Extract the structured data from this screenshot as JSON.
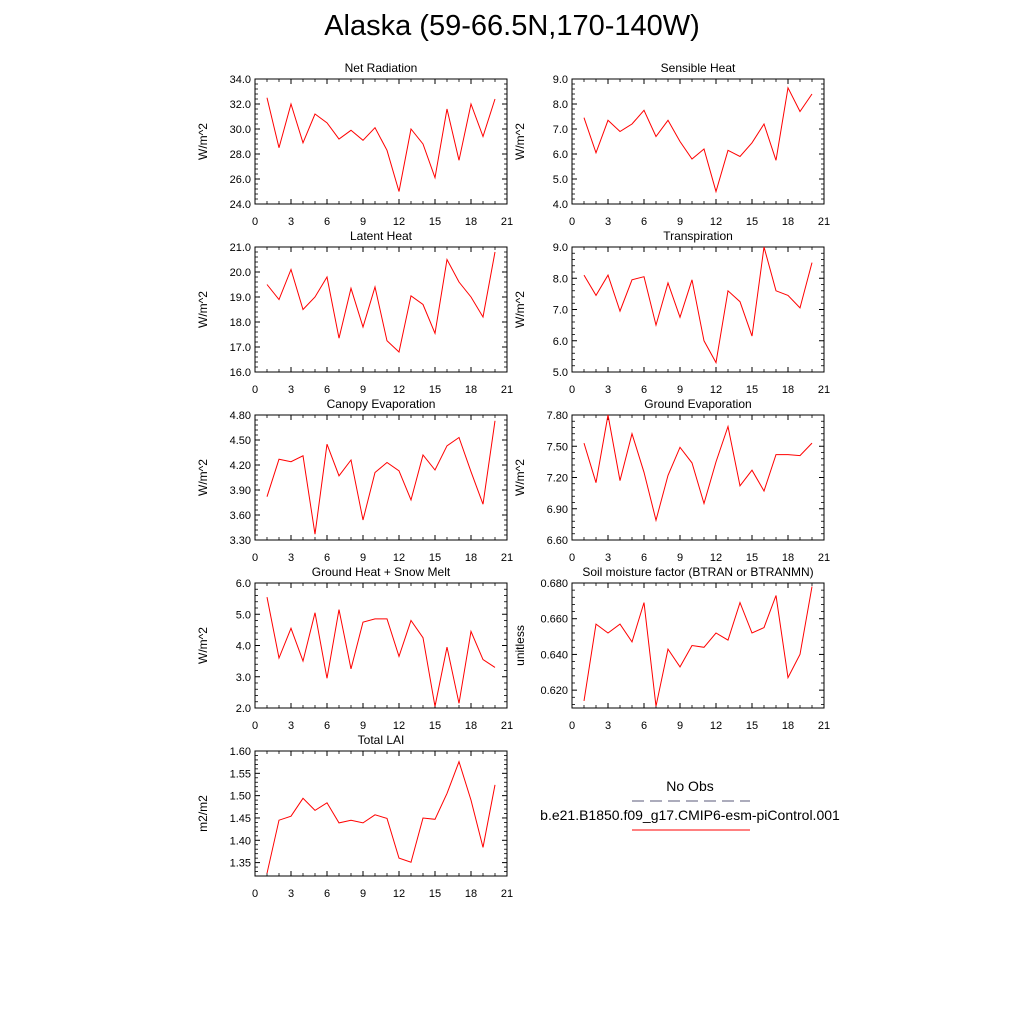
{
  "title": "Alaska (59-66.5N,170-140W)",
  "legend": {
    "obs_label": "No Obs",
    "obs_color": "#5a5a78",
    "model_label": "b.e21.B1850.f09_g17.CMIP6-esm-piControl.001",
    "model_color": "#ff0000"
  },
  "series_color": "#ff0000",
  "chart_data": [
    {
      "type": "line",
      "title": "Net Radiation",
      "ylabel": "W/m^2",
      "xlim": [
        0,
        21
      ],
      "xticks": [
        0,
        3,
        6,
        9,
        12,
        15,
        18,
        21
      ],
      "ylim": [
        24,
        34
      ],
      "yticks": [
        "24.0",
        "26.0",
        "28.0",
        "30.0",
        "32.0",
        "34.0"
      ],
      "x": [
        1,
        2,
        3,
        4,
        5,
        6,
        7,
        8,
        9,
        10,
        11,
        12,
        13,
        14,
        15,
        16,
        17,
        18,
        19,
        20
      ],
      "y": [
        32.5,
        28.5,
        32.0,
        28.9,
        31.2,
        30.5,
        29.2,
        29.9,
        29.1,
        30.1,
        28.3,
        25.0,
        30.0,
        28.8,
        26.1,
        31.6,
        27.5,
        32.0,
        29.4,
        32.4
      ]
    },
    {
      "type": "line",
      "title": "Sensible Heat",
      "ylabel": "W/m^2",
      "xlim": [
        0,
        21
      ],
      "xticks": [
        0,
        3,
        6,
        9,
        12,
        15,
        18,
        21
      ],
      "ylim": [
        4,
        9
      ],
      "yticks": [
        "4.0",
        "5.0",
        "6.0",
        "7.0",
        "8.0",
        "9.0"
      ],
      "x": [
        1,
        2,
        3,
        4,
        5,
        6,
        7,
        8,
        9,
        10,
        11,
        12,
        13,
        14,
        15,
        16,
        17,
        18,
        19,
        20
      ],
      "y": [
        7.45,
        6.05,
        7.35,
        6.9,
        7.2,
        7.75,
        6.7,
        7.35,
        6.5,
        5.8,
        6.2,
        4.5,
        6.15,
        5.9,
        6.45,
        7.2,
        5.75,
        8.65,
        7.7,
        8.4
      ]
    },
    {
      "type": "line",
      "title": "Latent Heat",
      "ylabel": "W/m^2",
      "xlim": [
        0,
        21
      ],
      "xticks": [
        0,
        3,
        6,
        9,
        12,
        15,
        18,
        21
      ],
      "ylim": [
        16,
        21
      ],
      "yticks": [
        "16.0",
        "17.0",
        "18.0",
        "19.0",
        "20.0",
        "21.0"
      ],
      "x": [
        1,
        2,
        3,
        4,
        5,
        6,
        7,
        8,
        9,
        10,
        11,
        12,
        13,
        14,
        15,
        16,
        17,
        18,
        19,
        20
      ],
      "y": [
        19.5,
        18.9,
        20.1,
        18.5,
        19.0,
        19.8,
        17.35,
        19.35,
        17.8,
        19.4,
        17.25,
        16.8,
        19.05,
        18.7,
        17.55,
        20.5,
        19.6,
        19.0,
        18.2,
        20.8
      ]
    },
    {
      "type": "line",
      "title": "Transpiration",
      "ylabel": "W/m^2",
      "xlim": [
        0,
        21
      ],
      "xticks": [
        0,
        3,
        6,
        9,
        12,
        15,
        18,
        21
      ],
      "ylim": [
        5,
        9
      ],
      "yticks": [
        "5.0",
        "6.0",
        "7.0",
        "8.0",
        "9.0"
      ],
      "x": [
        1,
        2,
        3,
        4,
        5,
        6,
        7,
        8,
        9,
        10,
        11,
        12,
        13,
        14,
        15,
        16,
        17,
        18,
        19,
        20
      ],
      "y": [
        8.1,
        7.45,
        8.1,
        6.95,
        7.95,
        8.05,
        6.5,
        7.85,
        6.75,
        7.95,
        6.0,
        5.3,
        7.6,
        7.25,
        6.15,
        9.0,
        7.6,
        7.45,
        7.05,
        8.5
      ]
    },
    {
      "type": "line",
      "title": "Canopy Evaporation",
      "ylabel": "W/m^2",
      "xlim": [
        0,
        21
      ],
      "xticks": [
        0,
        3,
        6,
        9,
        12,
        15,
        18,
        21
      ],
      "ylim": [
        3.3,
        4.8
      ],
      "yticks": [
        "3.30",
        "3.60",
        "3.90",
        "4.20",
        "4.50",
        "4.80"
      ],
      "x": [
        1,
        2,
        3,
        4,
        5,
        6,
        7,
        8,
        9,
        10,
        11,
        12,
        13,
        14,
        15,
        16,
        17,
        18,
        19,
        20
      ],
      "y": [
        3.82,
        4.27,
        4.24,
        4.31,
        3.37,
        4.45,
        4.07,
        4.26,
        3.54,
        4.11,
        4.23,
        4.13,
        3.78,
        4.32,
        4.14,
        4.43,
        4.53,
        4.12,
        3.73,
        4.73
      ]
    },
    {
      "type": "line",
      "title": "Ground Evaporation",
      "ylabel": "W/m^2",
      "xlim": [
        0,
        21
      ],
      "xticks": [
        0,
        3,
        6,
        9,
        12,
        15,
        18,
        21
      ],
      "ylim": [
        6.6,
        7.8
      ],
      "yticks": [
        "6.60",
        "6.90",
        "7.20",
        "7.50",
        "7.80"
      ],
      "x": [
        1,
        2,
        3,
        4,
        5,
        6,
        7,
        8,
        9,
        10,
        11,
        12,
        13,
        14,
        15,
        16,
        17,
        18,
        19,
        20
      ],
      "y": [
        7.53,
        7.15,
        7.8,
        7.17,
        7.62,
        7.25,
        6.79,
        7.22,
        7.49,
        7.34,
        6.95,
        7.35,
        7.69,
        7.12,
        7.27,
        7.07,
        7.42,
        7.42,
        7.41,
        7.53
      ]
    },
    {
      "type": "line",
      "title": "Ground Heat + Snow Melt",
      "ylabel": "W/m^2",
      "xlim": [
        0,
        21
      ],
      "xticks": [
        0,
        3,
        6,
        9,
        12,
        15,
        18,
        21
      ],
      "ylim": [
        2,
        6
      ],
      "yticks": [
        "2.0",
        "3.0",
        "4.0",
        "5.0",
        "6.0"
      ],
      "x": [
        1,
        2,
        3,
        4,
        5,
        6,
        7,
        8,
        9,
        10,
        11,
        12,
        13,
        14,
        15,
        16,
        17,
        18,
        19,
        20
      ],
      "y": [
        5.55,
        3.6,
        4.55,
        3.5,
        5.05,
        2.95,
        5.15,
        3.25,
        4.75,
        4.85,
        4.85,
        3.65,
        4.8,
        4.25,
        2.05,
        3.95,
        2.15,
        4.45,
        3.55,
        3.3
      ]
    },
    {
      "type": "line",
      "title": "Soil moisture factor (BTRAN or BTRANMN)",
      "ylabel": "unitless",
      "xlim": [
        0,
        21
      ],
      "xticks": [
        0,
        3,
        6,
        9,
        12,
        15,
        18,
        21
      ],
      "ylim": [
        0.61,
        0.68
      ],
      "yticks": [
        "0.620",
        "0.640",
        "0.660",
        "0.680"
      ],
      "x": [
        1,
        2,
        3,
        4,
        5,
        6,
        7,
        8,
        9,
        10,
        11,
        12,
        13,
        14,
        15,
        16,
        17,
        18,
        19,
        20
      ],
      "y": [
        0.614,
        0.657,
        0.652,
        0.657,
        0.647,
        0.669,
        0.611,
        0.643,
        0.633,
        0.645,
        0.644,
        0.652,
        0.648,
        0.669,
        0.652,
        0.655,
        0.673,
        0.627,
        0.64,
        0.678
      ]
    },
    {
      "type": "line",
      "title": "Total LAI",
      "ylabel": "m2/m2",
      "xlim": [
        0,
        21
      ],
      "xticks": [
        0,
        3,
        6,
        9,
        12,
        15,
        18,
        21
      ],
      "ylim": [
        1.32,
        1.6
      ],
      "yticks": [
        "1.35",
        "1.40",
        "1.45",
        "1.50",
        "1.55",
        "1.60"
      ],
      "x": [
        1,
        2,
        3,
        4,
        5,
        6,
        7,
        8,
        9,
        10,
        11,
        12,
        13,
        14,
        15,
        16,
        17,
        18,
        19,
        20
      ],
      "y": [
        1.326,
        1.445,
        1.454,
        1.494,
        1.467,
        1.484,
        1.439,
        1.445,
        1.439,
        1.457,
        1.449,
        1.36,
        1.351,
        1.45,
        1.447,
        1.505,
        1.576,
        1.49,
        1.384,
        1.524
      ]
    }
  ]
}
